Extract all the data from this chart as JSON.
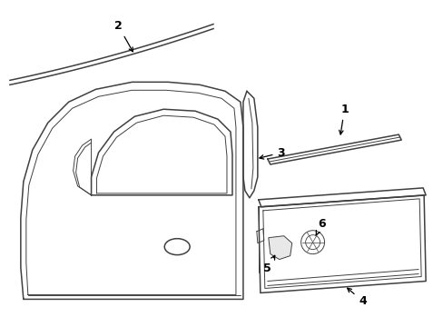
{
  "background_color": "#ffffff",
  "line_color": "#404040",
  "label_color": "#000000",
  "fig_width": 4.89,
  "fig_height": 3.6,
  "dpi": 100,
  "label_fontsize": 9,
  "arrow_color": "#000000"
}
